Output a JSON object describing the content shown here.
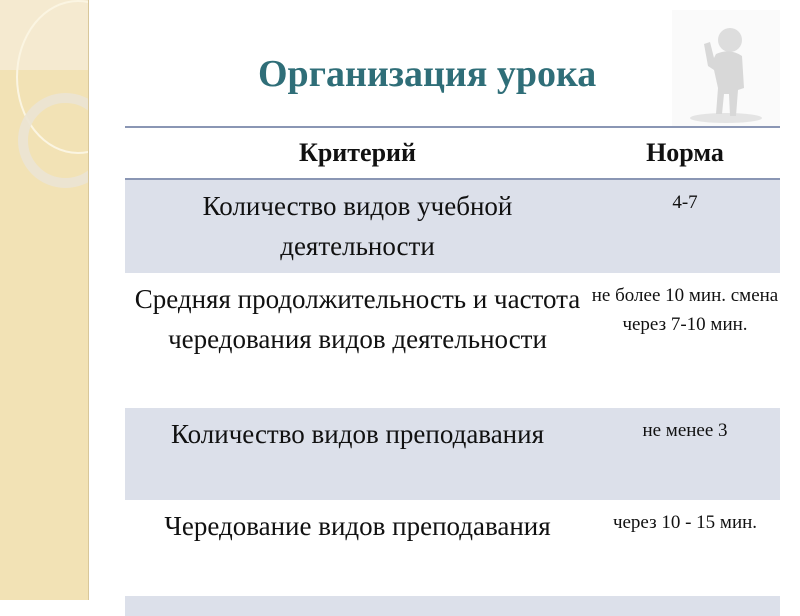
{
  "title": "Организация урока",
  "table": {
    "headers": [
      "Критерий",
      "Норма"
    ],
    "rows": [
      {
        "criterion": "Количество видов учебной деятельности",
        "norm": "4-7"
      },
      {
        "criterion": "Средняя продолжительность и частота чередования видов деятельности",
        "norm": "не более 10 мин.  смена через 7-10 мин."
      },
      {
        "criterion": "Количество видов преподавания",
        "norm": "не менее 3"
      },
      {
        "criterion": "Чередование видов преподавания",
        "norm": "через  10 -  15 мин."
      }
    ]
  },
  "colors": {
    "title": "#2f6e78",
    "row_shade": "#dce0ea",
    "sidebar": "#f2e2b5"
  }
}
